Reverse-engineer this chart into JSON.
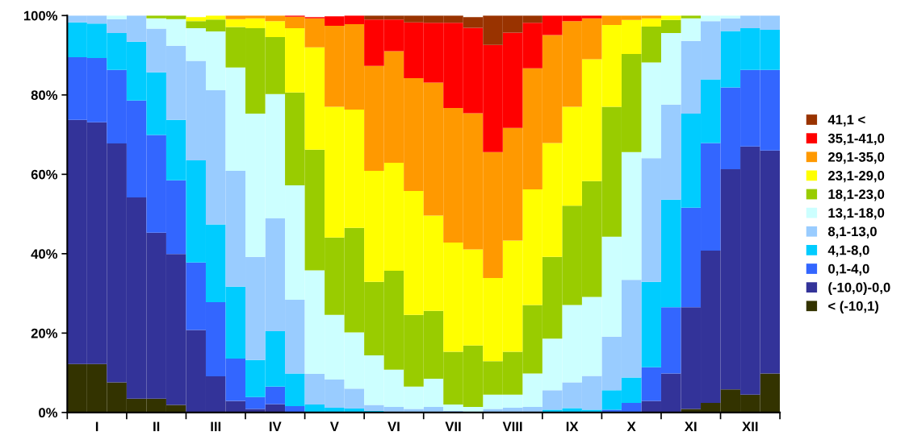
{
  "chart_data": {
    "type": "bar",
    "stacked": true,
    "legend": "right",
    "grid": false,
    "categories": [
      null,
      "I",
      null,
      null,
      "II",
      null,
      null,
      "III",
      null,
      null,
      "IV",
      null,
      null,
      "V",
      null,
      null,
      "VI",
      null,
      null,
      "VII",
      null,
      null,
      "VIII",
      null,
      null,
      "IX",
      null,
      null,
      "X",
      null,
      null,
      "XI",
      null,
      null,
      "XII",
      null
    ],
    "ylim": [
      0,
      100
    ],
    "yticks": [
      {
        "value": 0,
        "label": "0%"
      },
      {
        "value": 20,
        "label": "20%"
      },
      {
        "value": 40,
        "label": "40%"
      },
      {
        "value": 60,
        "label": "60%"
      },
      {
        "value": 80,
        "label": "80%"
      },
      {
        "value": 100,
        "label": "100%"
      }
    ],
    "series": [
      {
        "name": "< (-10,1)",
        "color": "#333300",
        "values": [
          12.2,
          12.2,
          7.6,
          3.5,
          3.5,
          1.9,
          null,
          0,
          0,
          0,
          0,
          0,
          0,
          0,
          0,
          0,
          0,
          0,
          0,
          0,
          0,
          0,
          0,
          0,
          0,
          0,
          0,
          0,
          0,
          0,
          0,
          0.9,
          2.4,
          5.8,
          4.5,
          9.8
        ]
      },
      {
        "name": "(-10,0)-0,0",
        "color": "#333399",
        "values": [
          61.5,
          60.9,
          60.2,
          50.7,
          41.8,
          38.0,
          20.8,
          9.1,
          2.9,
          0.9,
          2.1,
          0,
          0,
          0,
          0,
          0,
          0,
          0,
          0,
          0,
          0,
          0,
          0,
          0,
          0,
          0,
          0,
          0,
          0,
          2.9,
          9.8,
          25.6,
          38.4,
          55.5,
          62.5,
          56.2
        ]
      },
      {
        "name": "0,1-4,0",
        "color": "#3366ff",
        "values": [
          15.8,
          16.2,
          18.5,
          24.4,
          24.6,
          18.6,
          17.0,
          18.7,
          10.7,
          3.0,
          4.4,
          1.6,
          null,
          null,
          0,
          0,
          0,
          0,
          0,
          0,
          0,
          0,
          0,
          0,
          0,
          0,
          0,
          0.7,
          2.4,
          8.5,
          16.7,
          25.1,
          27.1,
          20.6,
          19.3,
          20.3
        ]
      },
      {
        "name": "4,1-8,0",
        "color": "#00ccff",
        "values": [
          8.8,
          8.7,
          9.3,
          14.8,
          15.8,
          15.2,
          25.7,
          19.6,
          18.1,
          9.3,
          14.0,
          8.2,
          2.0,
          1.2,
          1.0,
          0.4,
          0,
          0,
          0,
          0,
          0,
          0,
          0,
          0,
          0.7,
          1.1,
          0.7,
          4.9,
          6.4,
          21.5,
          27.1,
          23.7,
          16.0,
          14.2,
          10.5,
          10.1
        ]
      },
      {
        "name": "8,1-13,0",
        "color": "#99ccff",
        "values": [
          1.7,
          2.0,
          3.5,
          6.6,
          11.0,
          18.7,
          25.1,
          33.8,
          29.2,
          26.0,
          28.4,
          18.6,
          7.7,
          7.1,
          5.0,
          1.5,
          1.4,
          0.9,
          1.4,
          0.4,
          null,
          0.9,
          1.2,
          1.4,
          4.9,
          6.5,
          8.5,
          13.5,
          24.6,
          31.2,
          24.0,
          18.3,
          14.7,
          3.2,
          3.2,
          3.6
        ]
      },
      {
        "name": "13,1-18,0",
        "color": "#ccffff",
        "values": [
          0,
          0,
          0.9,
          0,
          2.6,
          6.7,
          8.2,
          14.8,
          26.0,
          36.1,
          31.3,
          28.8,
          26.1,
          16.3,
          14.2,
          12.5,
          9.4,
          5.6,
          7.1,
          1.6,
          1.4,
          3.6,
          3.3,
          8.4,
          13.0,
          19.5,
          19.9,
          25.2,
          32.2,
          24.1,
          18.0,
          5.7,
          1.4,
          0.7,
          0,
          0
        ]
      },
      {
        "name": "18,1-23,0",
        "color": "#99cc00",
        "values": [
          0,
          0,
          0,
          0,
          0.7,
          0.9,
          1.8,
          3.0,
          10.2,
          21.5,
          14.4,
          23.4,
          30.4,
          19.5,
          26.3,
          18.5,
          24.9,
          18.1,
          17.1,
          13.3,
          15.5,
          8.4,
          10.8,
          17.3,
          20.6,
          25.0,
          29.2,
          32.7,
          24.7,
          9.0,
          3.3,
          0.7,
          0,
          0,
          0,
          0
        ]
      },
      {
        "name": "23,1-29,0",
        "color": "#ffff00",
        "values": [
          0,
          0,
          0,
          0,
          0,
          0,
          1.0,
          1.0,
          2.0,
          2.5,
          4.0,
          16.2,
          25.8,
          32.9,
          29.8,
          28.0,
          27.2,
          31.2,
          24.0,
          27.5,
          24.2,
          21.0,
          28.0,
          29.1,
          28.7,
          24.9,
          30.7,
          20.6,
          8.6,
          2.1,
          1.1,
          0,
          0,
          0,
          0,
          0
        ]
      },
      {
        "name": "29,1-35,0",
        "color": "#ff9900",
        "values": [
          0,
          0,
          0,
          0,
          0,
          0,
          0,
          0,
          0.9,
          0.7,
          1.4,
          2.9,
          7.3,
          20.4,
          21.5,
          26.4,
          28.1,
          28.4,
          33.5,
          33.9,
          34.3,
          31.7,
          28.4,
          30.5,
          27.2,
          21.6,
          10.3,
          2.4,
          1.1,
          0.7,
          0,
          0,
          0,
          0,
          0,
          0
        ]
      },
      {
        "name": "35,1-41,0",
        "color": "#ff0000",
        "values": [
          0,
          0,
          0,
          0,
          0,
          0,
          0,
          0,
          0,
          0,
          0,
          0.3,
          0.3,
          2.4,
          2.2,
          11.7,
          8.0,
          14.1,
          15.1,
          21.5,
          21.5,
          27.0,
          24.0,
          11.5,
          4.9,
          1.4,
          0.7,
          0,
          0,
          0,
          0,
          0,
          0,
          0,
          0,
          0
        ]
      },
      {
        "name": "41,1 <",
        "color": "#993300",
        "values": [
          0,
          0,
          0,
          0,
          0,
          0,
          0,
          0,
          0,
          0,
          0,
          0,
          0,
          0,
          0,
          1.0,
          1.0,
          1.7,
          1.8,
          1.8,
          2.7,
          7.4,
          4.3,
          1.8,
          0,
          0,
          0,
          0,
          0,
          0,
          0,
          0,
          0,
          0,
          0,
          0
        ]
      }
    ]
  }
}
